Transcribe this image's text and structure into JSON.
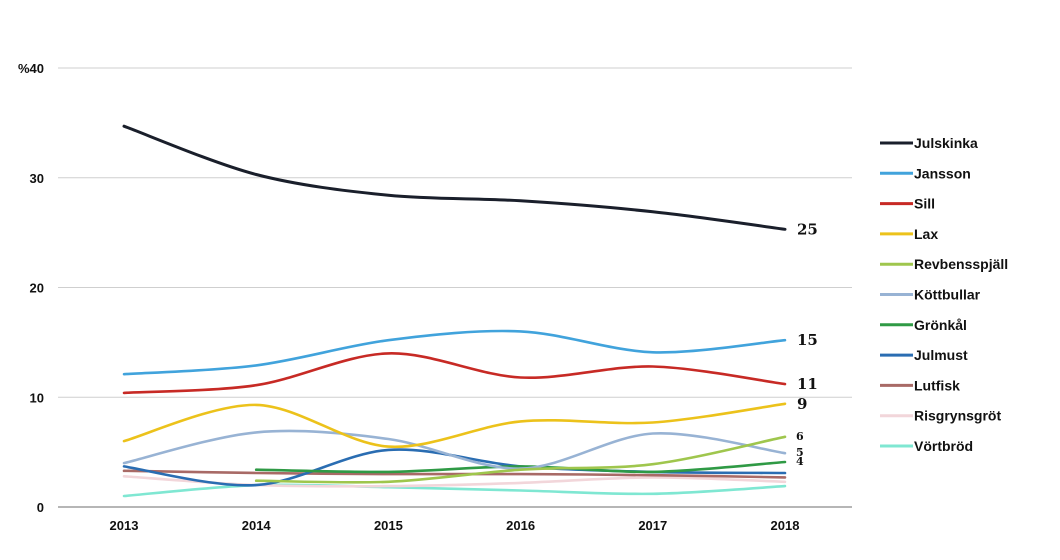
{
  "chart_data": {
    "type": "line",
    "x": [
      "2013",
      "2014",
      "2015",
      "2016",
      "2017",
      "2018"
    ],
    "ylim": [
      0,
      40
    ],
    "yticks": [
      "0",
      "10",
      "20",
      "30",
      "%40"
    ],
    "grid": true,
    "legend_position": "right",
    "series": [
      {
        "name": "Julskinka",
        "color": "#1a1f2b",
        "values": [
          34.7,
          30.3,
          28.4,
          27.9,
          26.9,
          25.3
        ],
        "end_label": "25",
        "label_size": "large"
      },
      {
        "name": "Jansson",
        "color": "#41a3dc",
        "values": [
          12.1,
          12.9,
          15.2,
          16.0,
          14.1,
          15.2
        ],
        "end_label": "15",
        "label_size": "large"
      },
      {
        "name": "Sill",
        "color": "#c72a25",
        "values": [
          10.4,
          11.1,
          14.0,
          11.8,
          12.8,
          11.2
        ],
        "end_label": "11",
        "label_size": "large"
      },
      {
        "name": "Lax",
        "color": "#ecc21b",
        "values": [
          6.0,
          9.3,
          5.5,
          7.8,
          7.7,
          9.4
        ],
        "end_label": "9",
        "label_size": "large"
      },
      {
        "name": "Revbensspjäll",
        "color": "#9fc64d",
        "values": [
          null,
          2.4,
          2.3,
          3.4,
          3.9,
          6.4
        ],
        "end_label": "6",
        "label_size": "small"
      },
      {
        "name": "Köttbullar",
        "color": "#98b3d4",
        "values": [
          4.0,
          6.8,
          6.2,
          3.5,
          6.7,
          4.9
        ],
        "end_label": "5",
        "label_size": "small"
      },
      {
        "name": "Grönkål",
        "color": "#2f9a45",
        "values": [
          null,
          3.4,
          3.2,
          3.7,
          3.2,
          4.1
        ],
        "end_label": "4",
        "label_size": "small"
      },
      {
        "name": "Julmust",
        "color": "#2a6db2",
        "values": [
          3.7,
          2.0,
          5.2,
          3.7,
          3.2,
          3.1
        ],
        "end_label": "",
        "label_size": "small"
      },
      {
        "name": "Lutfisk",
        "color": "#a86a66",
        "values": [
          3.3,
          3.1,
          3.0,
          3.0,
          2.9,
          2.7
        ],
        "end_label": "",
        "label_size": "small"
      },
      {
        "name": "Risgrynsgröt",
        "color": "#f2d6da",
        "values": [
          2.8,
          2.0,
          1.9,
          2.2,
          2.7,
          2.3
        ],
        "end_label": "",
        "label_size": "small"
      },
      {
        "name": "Vörtbröd",
        "color": "#7fe7d2",
        "values": [
          1.0,
          2.0,
          1.8,
          1.5,
          1.2,
          1.9
        ],
        "end_label": "",
        "label_size": "small"
      }
    ]
  }
}
